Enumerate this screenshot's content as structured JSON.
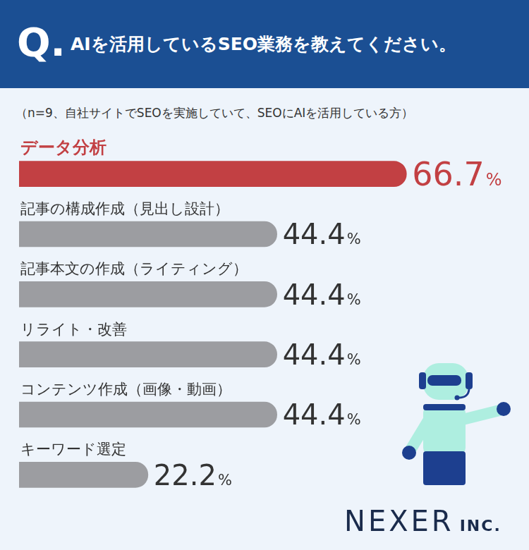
{
  "header": {
    "label": "Q.",
    "logo": "NEXER INC."
  },
  "chart_data": {
    "type": "bar",
    "orientation": "horizontal",
    "title": "AIを活用しているSEO業務を教えてください。",
    "subtitle": "（n=9、自社サイトでSEOを実施していて、SEOにAIを活用している方）",
    "categories": [
      "データ分析",
      "記事の構成作成（見出し設計）",
      "記事本文の作成（ライティング）",
      "リライト・改善",
      "コンテンツ作成（画像・動画）",
      "キーワード選定"
    ],
    "values": [
      66.7,
      44.4,
      44.4,
      44.4,
      44.4,
      22.2
    ],
    "value_labels": [
      "66.7%",
      "44.4%",
      "44.4%",
      "44.4%",
      "44.4%",
      "22.2%"
    ],
    "colors": [
      "#c24043",
      "#9c9da1",
      "#9c9da1",
      "#9c9da1",
      "#9c9da1",
      "#9c9da1"
    ],
    "xlim": [
      0,
      85
    ],
    "grid": false,
    "tick_labels": false,
    "data_labels": true
  }
}
